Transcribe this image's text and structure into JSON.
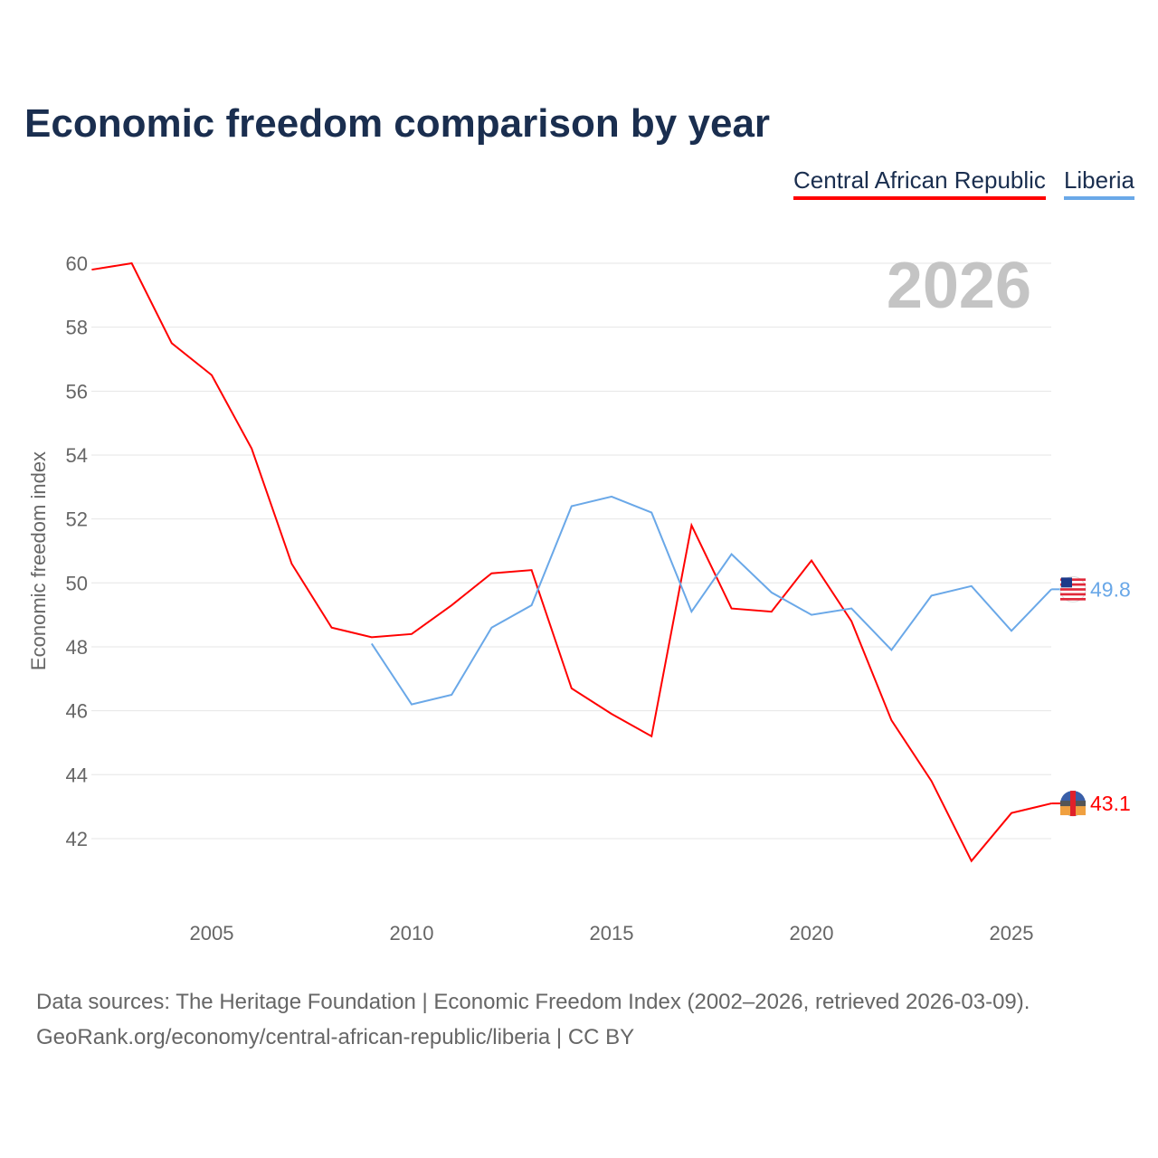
{
  "title": "Economic freedom comparison by year",
  "year_watermark": "2026",
  "source_line1": "Data sources: The Heritage Foundation | Economic Freedom Index (2002–2026, retrieved 2026-03-09).",
  "source_line2": "GeoRank.org/economy/central-african-republic/liberia | CC BY",
  "chart_data": {
    "type": "line",
    "title": "Economic freedom comparison by year",
    "xlabel": "",
    "ylabel": "Economic freedom index",
    "xlim": [
      2002,
      2026
    ],
    "ylim": [
      40,
      61
    ],
    "x_ticks": [
      2005,
      2010,
      2015,
      2020,
      2025
    ],
    "y_ticks": [
      42,
      44,
      46,
      48,
      50,
      52,
      54,
      56,
      58,
      60
    ],
    "grid": true,
    "legend": "top-right",
    "series": [
      {
        "name": "Central African Republic",
        "color": "#ff0000",
        "end_label": "43.1",
        "x": [
          2002,
          2003,
          2004,
          2005,
          2006,
          2007,
          2008,
          2009,
          2010,
          2011,
          2012,
          2013,
          2014,
          2015,
          2016,
          2017,
          2018,
          2019,
          2020,
          2021,
          2022,
          2023,
          2024,
          2025,
          2026
        ],
        "values": [
          59.8,
          60.0,
          57.5,
          56.5,
          54.2,
          50.6,
          48.6,
          48.3,
          48.4,
          49.3,
          50.3,
          50.4,
          46.7,
          45.9,
          45.2,
          51.8,
          49.2,
          49.1,
          50.7,
          48.8,
          45.7,
          43.8,
          41.3,
          42.8,
          43.1
        ]
      },
      {
        "name": "Liberia",
        "color": "#6aa8e8",
        "end_label": "49.8",
        "x": [
          2009,
          2010,
          2011,
          2012,
          2013,
          2014,
          2015,
          2016,
          2017,
          2018,
          2019,
          2020,
          2021,
          2022,
          2023,
          2024,
          2025,
          2026
        ],
        "values": [
          48.1,
          46.2,
          46.5,
          48.6,
          49.3,
          52.4,
          52.7,
          52.2,
          49.1,
          50.9,
          49.7,
          49.0,
          49.2,
          47.9,
          49.6,
          49.9,
          48.5,
          49.8
        ]
      }
    ]
  }
}
